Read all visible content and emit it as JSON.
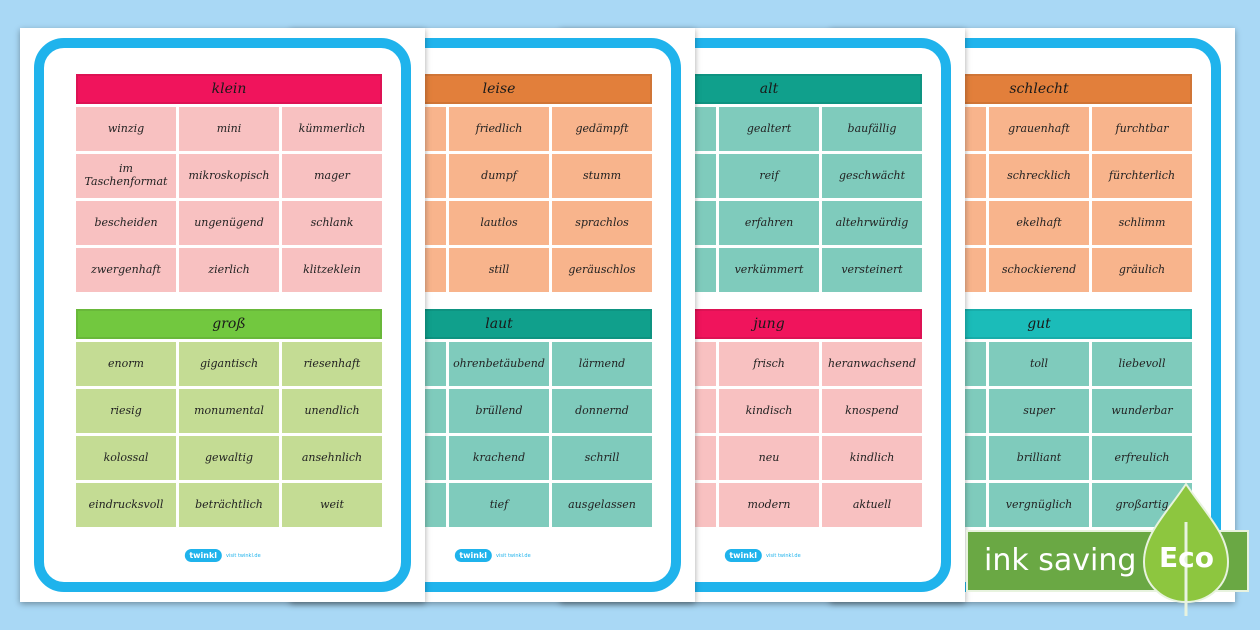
{
  "colors": {
    "background": "#a9d8f5",
    "frame": "#1fb3ec",
    "red_header": "#f0145c",
    "red_cell": "#f8c1c1",
    "green_header": "#72c83f",
    "green_cell": "#c4dc94",
    "orange_header": "#e27f3b",
    "orange_cell": "#f8b48c",
    "teal_header": "#10a08c",
    "teal_cell": "#7fcbbc",
    "cyan_header": "#1bbcb9",
    "eco_green": "#6aa844"
  },
  "sheets": [
    {
      "logo": "twinkl",
      "logo_url": "visit twinkl.de",
      "blocks": [
        {
          "title": "klein",
          "words": [
            "winzig",
            "mini",
            "kümmerlich",
            "im Taschenformat",
            "mikroskopisch",
            "mager",
            "bescheiden",
            "ungenügend",
            "schlank",
            "zwergenhaft",
            "zierlich",
            "klitzeklein"
          ]
        },
        {
          "title": "groß",
          "words": [
            "enorm",
            "gigantisch",
            "riesenhaft",
            "riesig",
            "monumental",
            "unendlich",
            "kolossal",
            "gewaltig",
            "ansehnlich",
            "eindrucksvoll",
            "beträchtlich",
            "weit"
          ]
        }
      ]
    },
    {
      "logo": "twinkl",
      "logo_url": "visit twinkl.de",
      "blocks": [
        {
          "title": "leise",
          "words": [
            "",
            "friedlich",
            "gedämpft",
            "",
            "dumpf",
            "stumm",
            "",
            "lautlos",
            "sprachlos",
            "",
            "still",
            "geräuschlos"
          ]
        },
        {
          "title": "laut",
          "words": [
            "",
            "ohrenbetäubend",
            "lärmend",
            "",
            "brüllend",
            "donnernd",
            "",
            "krachend",
            "schrill",
            "",
            "tief",
            "ausgelassen"
          ]
        }
      ]
    },
    {
      "logo": "twinkl",
      "logo_url": "visit twinkl.de",
      "blocks": [
        {
          "title": "alt",
          "words": [
            "",
            "gealtert",
            "baufällig",
            "",
            "reif",
            "geschwächt",
            "",
            "erfahren",
            "altehrwürdig",
            "",
            "verkümmert",
            "versteinert"
          ]
        },
        {
          "title": "jung",
          "words": [
            "",
            "frisch",
            "heranwachsend",
            "",
            "kindisch",
            "knospend",
            "",
            "neu",
            "kindlich",
            "",
            "modern",
            "aktuell"
          ]
        }
      ]
    },
    {
      "blocks": [
        {
          "title": "schlecht",
          "words": [
            "",
            "grauenhaft",
            "furchtbar",
            "",
            "schrecklich",
            "fürchterlich",
            "",
            "ekelhaft",
            "schlimm",
            "",
            "schockierend",
            "gräulich"
          ]
        },
        {
          "title": "gut",
          "words": [
            "",
            "toll",
            "liebevoll",
            "",
            "super",
            "wunderbar",
            "",
            "brilliant",
            "erfreulich",
            "",
            "vergnüglich",
            "großartig"
          ]
        }
      ]
    }
  ],
  "eco": {
    "banner_text": "ink saving",
    "leaf_text": "Eco"
  }
}
